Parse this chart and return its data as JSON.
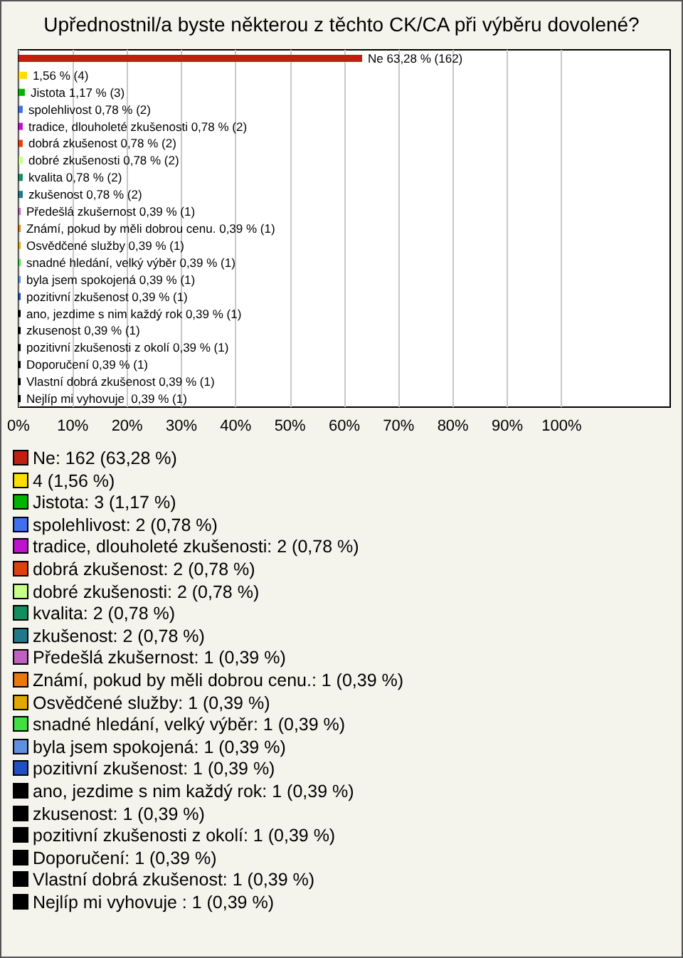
{
  "chart_data": {
    "type": "bar",
    "orientation": "horizontal",
    "title": "Upřednostnil/a byste některou z těchto CK/CA při výběru dovolené?",
    "categories": [
      "Ne",
      null,
      "Jistota",
      "spolehlivost",
      "tradice, dlouholeté zkušenosti",
      "dobrá zkušenost",
      "dobré zkušenosti",
      "kvalita",
      "zkušenost",
      "Předešlá zkušernost",
      "Známí, pokud by měli dobrou cenu.",
      "Osvědčené služby",
      "snadné hledání, velký výběr",
      "byla jsem spokojená",
      "pozitivní zkušenost",
      "ano, jezdime s nim každý rok",
      "zkusenost",
      "pozitivní zkušenosti z okolí",
      "Doporučení",
      "Vlastní dobrá zkušenost",
      "Nejlíp mi vyhovuje "
    ],
    "values": [
      63.28,
      1.56,
      1.17,
      0.78,
      0.78,
      0.78,
      0.78,
      0.78,
      0.78,
      0.39,
      0.39,
      0.39,
      0.39,
      0.39,
      0.39,
      0.39,
      0.39,
      0.39,
      0.39,
      0.39,
      0.39
    ],
    "value_labels": [
      "63,28 % (162)",
      "1,56 % (4)",
      "1,17 % (3)",
      "0,78 % (2)",
      "0,78 % (2)",
      "0,78 % (2)",
      "0,78 % (2)",
      "0,78 % (2)",
      "0,78 % (2)",
      "0,39 % (1)",
      "0,39 % (1)",
      "0,39 % (1)",
      "0,39 % (1)",
      "0,39 % (1)",
      "0,39 % (1)",
      "0,39 % (1)",
      "0,39 % (1)",
      "0,39 % (1)",
      "0,39 % (1)",
      "0,39 % (1)",
      "0,39 % (1)"
    ],
    "colors": [
      "#c0200f",
      "#ffdd00",
      "#00b400",
      "#4070f0",
      "#c010d0",
      "#e04010",
      "#c8ff88",
      "#109060",
      "#207888",
      "#c060c0",
      "#e87810",
      "#e0a800",
      "#40e040",
      "#6090e0",
      "#2050c0",
      "#000000",
      "#000000",
      "#000000",
      "#000000",
      "#000000",
      "#000000"
    ],
    "xlim": [
      0,
      120
    ],
    "xticks": [
      {
        "value": 0,
        "label": "0%"
      },
      {
        "value": 10,
        "label": "10%"
      },
      {
        "value": 20,
        "label": "20%"
      },
      {
        "value": 30,
        "label": "30%"
      },
      {
        "value": 40,
        "label": "40%"
      },
      {
        "value": 50,
        "label": "50%"
      },
      {
        "value": 60,
        "label": "60%"
      },
      {
        "value": 70,
        "label": "70%"
      },
      {
        "value": 80,
        "label": "80%"
      },
      {
        "value": 90,
        "label": "90%"
      },
      {
        "value": 100,
        "label": "100%"
      }
    ],
    "grid": "x",
    "tick_labels": "x",
    "annotations": [
      "Ne: 162 (63,28 %)",
      "4 (1,56 %)",
      "Jistota: 3 (1,17 %)",
      "spolehlivost: 2 (0,78 %)",
      "tradice, dlouholeté zkušenosti: 2 (0,78 %)",
      "dobrá zkušenost: 2 (0,78 %)",
      "dobré zkušenosti: 2 (0,78 %)",
      "kvalita: 2 (0,78 %)",
      "zkušenost: 2 (0,78 %)",
      "Předešlá zkušernost: 1 (0,39 %)",
      "Známí, pokud by měli dobrou cenu.: 1 (0,39 %)",
      "Osvědčené služby: 1 (0,39 %)",
      "snadné hledání, velký výběr: 1 (0,39 %)",
      "byla jsem spokojená: 1 (0,39 %)",
      "pozitivní zkušenost: 1 (0,39 %)",
      "ano, jezdime s nim každý rok: 1 (0,39 %)",
      "zkusenost: 1 (0,39 %)",
      "pozitivní zkušenosti z okolí: 1 (0,39 %)",
      "Doporučení: 1 (0,39 %)",
      "Vlastní dobrá zkušenost: 1 (0,39 %)",
      "Nejlíp mi vyhovuje : 1 (0,39 %)"
    ]
  }
}
